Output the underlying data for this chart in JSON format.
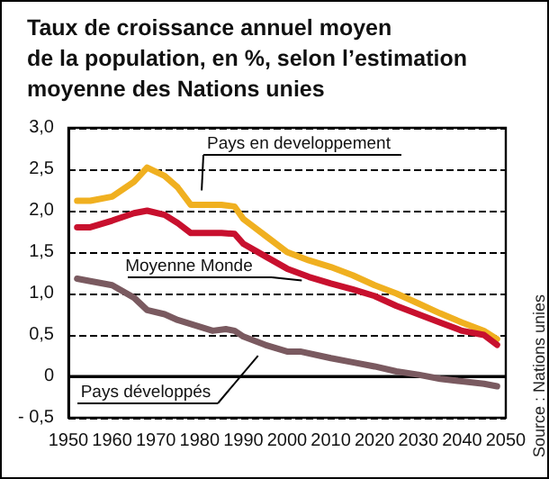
{
  "chart_data": {
    "type": "line",
    "title": "Taux de croissance annuel moyen\nde la population, en %, selon l’estimation\nmoyenne des Nations unies",
    "xlim": [
      1950,
      2050
    ],
    "xticks": [
      1950,
      1960,
      1970,
      1980,
      1990,
      2000,
      2010,
      2020,
      2030,
      2040,
      2050
    ],
    "ylim": [
      -0.5,
      3.0
    ],
    "yticks": [
      {
        "value": -0.5,
        "label": "- 0,5"
      },
      {
        "value": 0,
        "label": "0"
      },
      {
        "value": 0.5,
        "label": "0,5"
      },
      {
        "value": 1.0,
        "label": "1,0"
      },
      {
        "value": 1.5,
        "label": "1,5"
      },
      {
        "value": 2.0,
        "label": "2,0"
      },
      {
        "value": 2.5,
        "label": "2,5"
      },
      {
        "value": 3.0,
        "label": "3,0"
      }
    ],
    "grid": "y",
    "legend": false,
    "marker": "none",
    "line_style": "solid",
    "ref_lines": [
      {
        "axis": "y",
        "value": 0,
        "color": "#000000",
        "line_style": "solid"
      }
    ],
    "annotations": [
      "Source : Nations unies"
    ],
    "series": [
      {
        "name": "Pays en developpement",
        "color": "#f0b020",
        "x": [
          1952,
          1955,
          1960,
          1965,
          1968,
          1972,
          1975,
          1978,
          1980,
          1985,
          1988,
          1990,
          1995,
          2000,
          2005,
          2010,
          2015,
          2020,
          2025,
          2030,
          2035,
          2040,
          2045,
          2048
        ],
        "values": [
          2.12,
          2.12,
          2.17,
          2.35,
          2.52,
          2.42,
          2.28,
          2.07,
          2.07,
          2.07,
          2.05,
          1.9,
          1.7,
          1.5,
          1.4,
          1.32,
          1.22,
          1.1,
          1.0,
          0.88,
          0.76,
          0.65,
          0.55,
          0.45
        ]
      },
      {
        "name": "Moyenne Monde",
        "color": "#c8102e",
        "x": [
          1952,
          1955,
          1960,
          1965,
          1968,
          1972,
          1975,
          1978,
          1980,
          1985,
          1988,
          1990,
          1995,
          2000,
          2005,
          2010,
          2015,
          2020,
          2025,
          2030,
          2035,
          2040,
          2045,
          2048
        ],
        "values": [
          1.8,
          1.8,
          1.88,
          1.97,
          2.0,
          1.95,
          1.85,
          1.73,
          1.73,
          1.73,
          1.72,
          1.6,
          1.45,
          1.3,
          1.2,
          1.12,
          1.05,
          0.97,
          0.85,
          0.75,
          0.65,
          0.55,
          0.5,
          0.38
        ]
      },
      {
        "name": "Pays développés",
        "color": "#7a5a60",
        "x": [
          1952,
          1955,
          1960,
          1965,
          1968,
          1972,
          1975,
          1980,
          1983,
          1986,
          1988,
          1990,
          1995,
          2000,
          2003,
          2010,
          2015,
          2020,
          2025,
          2030,
          2035,
          2040,
          2045,
          2048
        ],
        "values": [
          1.18,
          1.15,
          1.1,
          0.95,
          0.8,
          0.75,
          0.68,
          0.6,
          0.55,
          0.57,
          0.55,
          0.48,
          0.38,
          0.3,
          0.3,
          0.22,
          0.17,
          0.12,
          0.06,
          0.02,
          -0.03,
          -0.06,
          -0.09,
          -0.12
        ]
      }
    ]
  }
}
